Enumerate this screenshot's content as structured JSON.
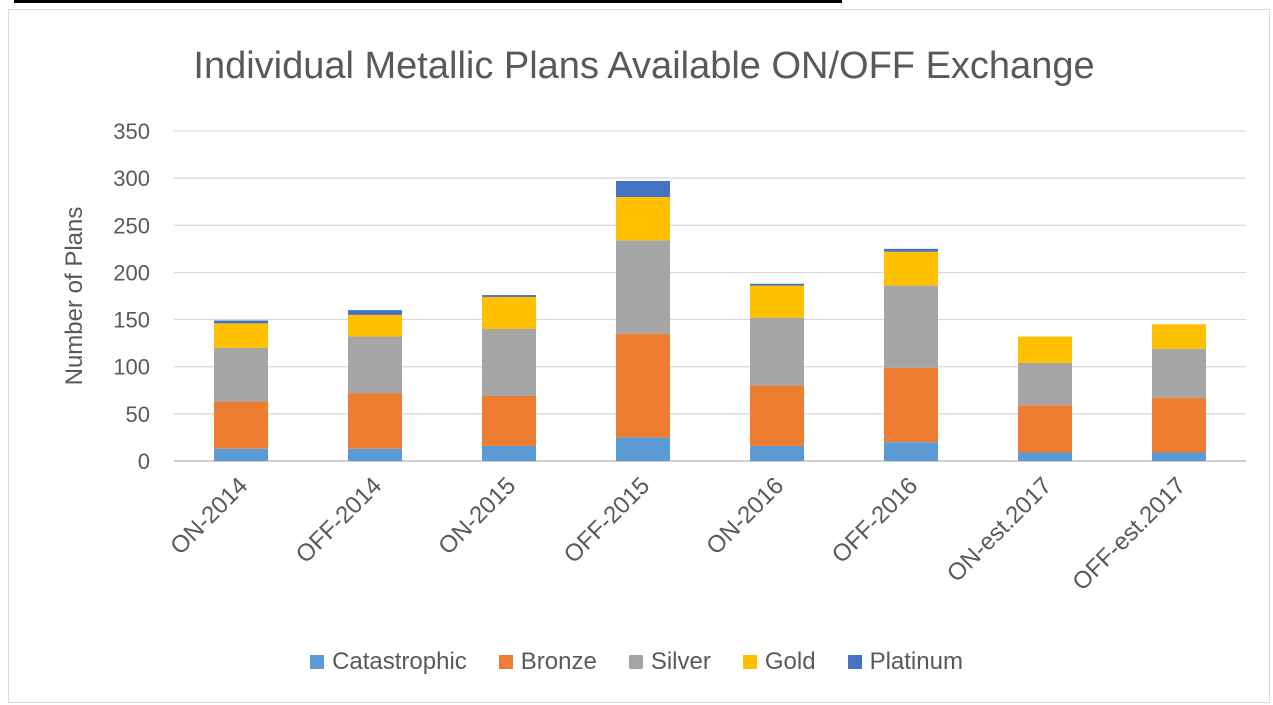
{
  "chart_data": {
    "type": "bar",
    "stacked": true,
    "title": "Individual Metallic Plans Available ON/OFF Exchange",
    "ylabel": "Number of Plans",
    "xlabel": "",
    "ylim": [
      0,
      350
    ],
    "yticks": [
      0,
      50,
      100,
      150,
      200,
      250,
      300,
      350
    ],
    "grid": true,
    "legend_position": "bottom",
    "categories": [
      "ON-2014",
      "OFF-2014",
      "ON-2015",
      "OFF-2015",
      "ON-2016",
      "OFF-2016",
      "ON-est.2017",
      "OFF-est.2017"
    ],
    "series": [
      {
        "name": "Catastrophic",
        "color": "#5b9bd5",
        "values": [
          13,
          13,
          16,
          25,
          16,
          20,
          9,
          9
        ]
      },
      {
        "name": "Bronze",
        "color": "#ed7d31",
        "values": [
          50,
          59,
          53,
          110,
          64,
          79,
          50,
          58
        ]
      },
      {
        "name": "Silver",
        "color": "#a5a5a5",
        "values": [
          57,
          60,
          71,
          99,
          72,
          87,
          45,
          52
        ]
      },
      {
        "name": "Gold",
        "color": "#ffc000",
        "values": [
          26,
          23,
          34,
          46,
          34,
          36,
          28,
          26
        ]
      },
      {
        "name": "Platinum",
        "color": "#4472c4",
        "values": [
          3,
          5,
          2,
          17,
          2,
          3,
          0,
          0
        ]
      }
    ]
  }
}
